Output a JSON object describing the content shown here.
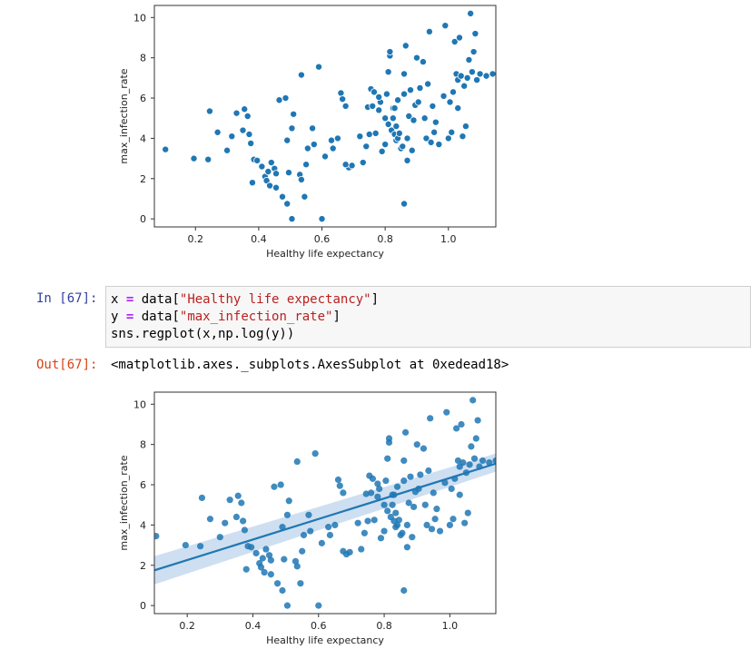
{
  "cell_in": {
    "prompt": "In [67]:",
    "code": {
      "line1_var": "x",
      "line1_op": "=",
      "line1_pre": " data[",
      "line1_str": "\"Healthy life expectancy\"",
      "line1_post": "]",
      "line2_var": "y",
      "line2_op": "=",
      "line2_pre": " data[",
      "line2_str": "\"max_infection_rate\"",
      "line2_post": "]",
      "line3": "sns.regplot(x,np.log(y))"
    }
  },
  "cell_out": {
    "prompt": "Out[67]:",
    "text": "<matplotlib.axes._subplots.AxesSubplot at 0xedead18>"
  },
  "colors": {
    "point": "#1f77b4",
    "line": "#1f77b4",
    "band": "#c6d9ee",
    "in_prompt": "#303f9f",
    "out_prompt": "#d84315",
    "code_bg": "#f7f7f7"
  },
  "chart_data": [
    {
      "type": "scatter",
      "title": "",
      "xlabel": "Healthy life expectancy",
      "ylabel": "max_infection_rate",
      "xlim": [
        0.07,
        1.15
      ],
      "ylim": [
        -0.4,
        10.6
      ],
      "xticks": [
        "0.2",
        "0.4",
        "0.6",
        "0.8",
        "1.0"
      ],
      "xtick_values": [
        0.2,
        0.4,
        0.6,
        0.8,
        1.0
      ],
      "yticks": [
        "0",
        "2",
        "4",
        "6",
        "8",
        "10"
      ],
      "ytick_values": [
        0,
        2,
        4,
        6,
        8,
        10
      ],
      "grid": false,
      "points": [
        [
          0.105,
          3.45
        ],
        [
          0.195,
          3.0
        ],
        [
          0.24,
          2.95
        ],
        [
          0.245,
          5.35
        ],
        [
          0.27,
          4.3
        ],
        [
          0.3,
          3.4
        ],
        [
          0.315,
          4.1
        ],
        [
          0.33,
          5.25
        ],
        [
          0.355,
          5.45
        ],
        [
          0.365,
          5.1
        ],
        [
          0.35,
          4.4
        ],
        [
          0.37,
          4.2
        ],
        [
          0.375,
          3.75
        ],
        [
          0.38,
          1.8
        ],
        [
          0.385,
          2.95
        ],
        [
          0.395,
          2.9
        ],
        [
          0.41,
          2.6
        ],
        [
          0.42,
          2.1
        ],
        [
          0.425,
          1.9
        ],
        [
          0.43,
          2.35
        ],
        [
          0.435,
          1.65
        ],
        [
          0.44,
          2.8
        ],
        [
          0.45,
          2.5
        ],
        [
          0.455,
          1.55
        ],
        [
          0.465,
          5.9
        ],
        [
          0.475,
          1.1
        ],
        [
          0.485,
          6.0
        ],
        [
          0.49,
          0.75
        ],
        [
          0.49,
          3.9
        ],
        [
          0.495,
          2.3
        ],
        [
          0.505,
          0.0
        ],
        [
          0.51,
          5.2
        ],
        [
          0.53,
          2.2
        ],
        [
          0.535,
          1.95
        ],
        [
          0.535,
          7.15
        ],
        [
          0.545,
          1.1
        ],
        [
          0.55,
          2.7
        ],
        [
          0.555,
          3.5
        ],
        [
          0.57,
          4.5
        ],
        [
          0.575,
          3.7
        ],
        [
          0.59,
          7.55
        ],
        [
          0.6,
          0.0
        ],
        [
          0.61,
          3.1
        ],
        [
          0.63,
          3.9
        ],
        [
          0.635,
          3.5
        ],
        [
          0.65,
          4.0
        ],
        [
          0.66,
          6.25
        ],
        [
          0.665,
          5.95
        ],
        [
          0.675,
          5.6
        ],
        [
          0.685,
          2.55
        ],
        [
          0.695,
          2.65
        ],
        [
          0.72,
          4.1
        ],
        [
          0.73,
          2.8
        ],
        [
          0.74,
          3.6
        ],
        [
          0.745,
          5.55
        ],
        [
          0.75,
          4.2
        ],
        [
          0.755,
          6.45
        ],
        [
          0.76,
          5.6
        ],
        [
          0.765,
          6.3
        ],
        [
          0.77,
          4.25
        ],
        [
          0.78,
          5.4
        ],
        [
          0.785,
          5.8
        ],
        [
          0.79,
          3.35
        ],
        [
          0.8,
          3.7
        ],
        [
          0.8,
          5.0
        ],
        [
          0.805,
          6.2
        ],
        [
          0.81,
          4.7
        ],
        [
          0.81,
          7.3
        ],
        [
          0.815,
          8.1
        ],
        [
          0.815,
          8.3
        ],
        [
          0.82,
          4.4
        ],
        [
          0.825,
          5.0
        ],
        [
          0.825,
          5.5
        ],
        [
          0.83,
          4.2
        ],
        [
          0.83,
          5.5
        ],
        [
          0.835,
          3.9
        ],
        [
          0.835,
          4.6
        ],
        [
          0.84,
          4.0
        ],
        [
          0.84,
          5.9
        ],
        [
          0.845,
          4.25
        ],
        [
          0.85,
          3.5
        ],
        [
          0.855,
          3.6
        ],
        [
          0.86,
          6.2
        ],
        [
          0.86,
          7.2
        ],
        [
          0.865,
          8.6
        ],
        [
          0.87,
          2.9
        ],
        [
          0.87,
          4.0
        ],
        [
          0.875,
          5.1
        ],
        [
          0.88,
          6.4
        ],
        [
          0.885,
          3.4
        ],
        [
          0.89,
          4.9
        ],
        [
          0.895,
          5.65
        ],
        [
          0.9,
          8.0
        ],
        [
          0.905,
          5.8
        ],
        [
          0.91,
          6.5
        ],
        [
          0.92,
          7.8
        ],
        [
          0.925,
          5.0
        ],
        [
          0.93,
          4.0
        ],
        [
          0.935,
          6.7
        ],
        [
          0.94,
          9.3
        ],
        [
          0.945,
          3.8
        ],
        [
          0.95,
          5.6
        ],
        [
          0.955,
          4.3
        ],
        [
          0.96,
          4.8
        ],
        [
          0.97,
          3.7
        ],
        [
          0.985,
          6.1
        ],
        [
          0.99,
          9.6
        ],
        [
          1.0,
          4.0
        ],
        [
          1.005,
          5.8
        ],
        [
          1.01,
          4.3
        ],
        [
          1.015,
          6.3
        ],
        [
          1.02,
          8.8
        ],
        [
          1.025,
          7.2
        ],
        [
          1.03,
          5.5
        ],
        [
          1.03,
          6.9
        ],
        [
          1.035,
          9.0
        ],
        [
          1.04,
          7.1
        ],
        [
          1.045,
          4.1
        ],
        [
          1.05,
          6.6
        ],
        [
          1.055,
          4.6
        ],
        [
          1.06,
          7.0
        ],
        [
          1.065,
          7.9
        ],
        [
          1.07,
          10.2
        ],
        [
          1.075,
          7.3
        ],
        [
          1.08,
          8.3
        ],
        [
          1.085,
          9.2
        ],
        [
          1.09,
          6.9
        ],
        [
          1.1,
          7.2
        ],
        [
          1.12,
          7.1
        ],
        [
          1.14,
          7.2
        ],
        [
          0.505,
          4.5
        ],
        [
          0.675,
          2.7
        ],
        [
          0.455,
          2.25
        ],
        [
          0.78,
          6.05
        ],
        [
          0.86,
          0.75
        ]
      ],
      "regression": null
    },
    {
      "type": "scatter",
      "title": "",
      "xlabel": "Healthy life expectancy",
      "ylabel": "max_infection_rate",
      "xlim": [
        0.1,
        1.14
      ],
      "ylim": [
        -0.4,
        10.6
      ],
      "xticks": [
        "0.2",
        "0.4",
        "0.6",
        "0.8",
        "1.0"
      ],
      "xtick_values": [
        0.2,
        0.4,
        0.6,
        0.8,
        1.0
      ],
      "yticks": [
        "0",
        "2",
        "4",
        "6",
        "8",
        "10"
      ],
      "ytick_values": [
        0,
        2,
        4,
        6,
        8,
        10
      ],
      "grid": false,
      "points": [
        [
          0.105,
          3.45
        ],
        [
          0.195,
          3.0
        ],
        [
          0.24,
          2.95
        ],
        [
          0.245,
          5.35
        ],
        [
          0.27,
          4.3
        ],
        [
          0.3,
          3.4
        ],
        [
          0.315,
          4.1
        ],
        [
          0.33,
          5.25
        ],
        [
          0.355,
          5.45
        ],
        [
          0.365,
          5.1
        ],
        [
          0.35,
          4.4
        ],
        [
          0.37,
          4.2
        ],
        [
          0.375,
          3.75
        ],
        [
          0.38,
          1.8
        ],
        [
          0.385,
          2.95
        ],
        [
          0.395,
          2.9
        ],
        [
          0.41,
          2.6
        ],
        [
          0.42,
          2.1
        ],
        [
          0.425,
          1.9
        ],
        [
          0.43,
          2.35
        ],
        [
          0.435,
          1.65
        ],
        [
          0.44,
          2.8
        ],
        [
          0.45,
          2.5
        ],
        [
          0.455,
          1.55
        ],
        [
          0.465,
          5.9
        ],
        [
          0.475,
          1.1
        ],
        [
          0.485,
          6.0
        ],
        [
          0.49,
          0.75
        ],
        [
          0.49,
          3.9
        ],
        [
          0.495,
          2.3
        ],
        [
          0.505,
          0.0
        ],
        [
          0.51,
          5.2
        ],
        [
          0.53,
          2.2
        ],
        [
          0.535,
          1.95
        ],
        [
          0.535,
          7.15
        ],
        [
          0.545,
          1.1
        ],
        [
          0.55,
          2.7
        ],
        [
          0.555,
          3.5
        ],
        [
          0.57,
          4.5
        ],
        [
          0.575,
          3.7
        ],
        [
          0.59,
          7.55
        ],
        [
          0.6,
          0.0
        ],
        [
          0.61,
          3.1
        ],
        [
          0.63,
          3.9
        ],
        [
          0.635,
          3.5
        ],
        [
          0.65,
          4.0
        ],
        [
          0.66,
          6.25
        ],
        [
          0.665,
          5.95
        ],
        [
          0.675,
          5.6
        ],
        [
          0.685,
          2.55
        ],
        [
          0.695,
          2.65
        ],
        [
          0.72,
          4.1
        ],
        [
          0.73,
          2.8
        ],
        [
          0.74,
          3.6
        ],
        [
          0.745,
          5.55
        ],
        [
          0.75,
          4.2
        ],
        [
          0.755,
          6.45
        ],
        [
          0.76,
          5.6
        ],
        [
          0.765,
          6.3
        ],
        [
          0.77,
          4.25
        ],
        [
          0.78,
          5.4
        ],
        [
          0.785,
          5.8
        ],
        [
          0.79,
          3.35
        ],
        [
          0.8,
          3.7
        ],
        [
          0.8,
          5.0
        ],
        [
          0.805,
          6.2
        ],
        [
          0.81,
          4.7
        ],
        [
          0.81,
          7.3
        ],
        [
          0.815,
          8.1
        ],
        [
          0.815,
          8.3
        ],
        [
          0.82,
          4.4
        ],
        [
          0.825,
          5.0
        ],
        [
          0.825,
          5.5
        ],
        [
          0.83,
          4.2
        ],
        [
          0.83,
          5.5
        ],
        [
          0.835,
          3.9
        ],
        [
          0.835,
          4.6
        ],
        [
          0.84,
          4.0
        ],
        [
          0.84,
          5.9
        ],
        [
          0.845,
          4.25
        ],
        [
          0.85,
          3.5
        ],
        [
          0.855,
          3.6
        ],
        [
          0.86,
          6.2
        ],
        [
          0.86,
          7.2
        ],
        [
          0.865,
          8.6
        ],
        [
          0.87,
          2.9
        ],
        [
          0.87,
          4.0
        ],
        [
          0.875,
          5.1
        ],
        [
          0.88,
          6.4
        ],
        [
          0.885,
          3.4
        ],
        [
          0.89,
          4.9
        ],
        [
          0.895,
          5.65
        ],
        [
          0.9,
          8.0
        ],
        [
          0.905,
          5.8
        ],
        [
          0.91,
          6.5
        ],
        [
          0.92,
          7.8
        ],
        [
          0.925,
          5.0
        ],
        [
          0.93,
          4.0
        ],
        [
          0.935,
          6.7
        ],
        [
          0.94,
          9.3
        ],
        [
          0.945,
          3.8
        ],
        [
          0.95,
          5.6
        ],
        [
          0.955,
          4.3
        ],
        [
          0.96,
          4.8
        ],
        [
          0.97,
          3.7
        ],
        [
          0.985,
          6.1
        ],
        [
          0.99,
          9.6
        ],
        [
          1.0,
          4.0
        ],
        [
          1.005,
          5.8
        ],
        [
          1.01,
          4.3
        ],
        [
          1.015,
          6.3
        ],
        [
          1.02,
          8.8
        ],
        [
          1.025,
          7.2
        ],
        [
          1.03,
          5.5
        ],
        [
          1.03,
          6.9
        ],
        [
          1.035,
          9.0
        ],
        [
          1.04,
          7.1
        ],
        [
          1.045,
          4.1
        ],
        [
          1.05,
          6.6
        ],
        [
          1.055,
          4.6
        ],
        [
          1.06,
          7.0
        ],
        [
          1.065,
          7.9
        ],
        [
          1.07,
          10.2
        ],
        [
          1.075,
          7.3
        ],
        [
          1.08,
          8.3
        ],
        [
          1.085,
          9.2
        ],
        [
          1.09,
          6.9
        ],
        [
          1.1,
          7.2
        ],
        [
          1.12,
          7.1
        ],
        [
          1.14,
          7.2
        ],
        [
          0.505,
          4.5
        ],
        [
          0.675,
          2.7
        ],
        [
          0.455,
          2.25
        ],
        [
          0.78,
          6.05
        ],
        [
          0.86,
          0.75
        ]
      ],
      "regression": {
        "x": [
          0.1,
          1.14
        ],
        "y": [
          1.75,
          7.05
        ],
        "ci_low": [
          1.05,
          6.65
        ],
        "ci_high": [
          2.45,
          7.55
        ]
      }
    }
  ]
}
